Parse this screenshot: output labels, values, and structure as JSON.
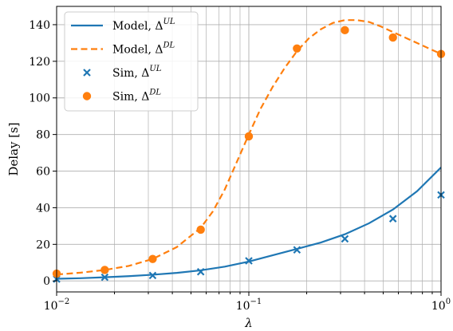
{
  "chart_data": {
    "type": "line",
    "xscale": "log",
    "xlim": [
      0.01,
      1
    ],
    "ylim": [
      -6,
      150
    ],
    "xlabel": "λ",
    "ylabel": "Delay [s]",
    "grid": true,
    "legend_position": "top-left",
    "xticks": [
      {
        "value": 0.01,
        "base": "10",
        "exp": "−2"
      },
      {
        "value": 0.1,
        "base": "10",
        "exp": "−1"
      },
      {
        "value": 1,
        "base": "10",
        "exp": "0"
      }
    ],
    "yticks": [
      0,
      20,
      40,
      60,
      80,
      100,
      120,
      140
    ],
    "series": [
      {
        "name": "Model, Δ",
        "sup": "UL",
        "kind": "line",
        "style": "solid",
        "color": "#1f77b4",
        "x": [
          0.01,
          0.0133,
          0.0178,
          0.0237,
          0.0316,
          0.0422,
          0.0562,
          0.075,
          0.1,
          0.133,
          0.178,
          0.237,
          0.316,
          0.422,
          0.562,
          0.75,
          1.0
        ],
        "y": [
          1.2,
          1.5,
          2.0,
          2.6,
          3.4,
          4.4,
          5.8,
          7.8,
          10.6,
          14.0,
          17.5,
          21.0,
          25.5,
          31.5,
          39.0,
          49.0,
          62.0
        ]
      },
      {
        "name": "Model, Δ",
        "sup": "DL",
        "kind": "line",
        "style": "dashed",
        "color": "#ff7f0e",
        "x": [
          0.01,
          0.0133,
          0.0178,
          0.0237,
          0.0316,
          0.0422,
          0.0562,
          0.065,
          0.075,
          0.0866,
          0.1,
          0.115,
          0.133,
          0.154,
          0.178,
          0.205,
          0.237,
          0.274,
          0.316,
          0.365,
          0.422,
          0.487,
          0.562,
          0.649,
          0.75,
          0.866,
          1.0
        ],
        "y": [
          3.5,
          4.5,
          6.0,
          8.2,
          12.0,
          18.5,
          29.0,
          38.0,
          50.0,
          65.0,
          80.0,
          94.0,
          106.0,
          116.5,
          125.5,
          132.5,
          137.5,
          141.0,
          142.5,
          142.5,
          141.5,
          139.0,
          136.0,
          133.0,
          130.0,
          127.0,
          124.0
        ]
      },
      {
        "name": "Sim, Δ",
        "sup": "UL",
        "kind": "scatter",
        "marker": "x",
        "color": "#1f77b4",
        "x": [
          0.01,
          0.0178,
          0.0316,
          0.0562,
          0.1,
          0.178,
          0.316,
          0.562,
          1.0
        ],
        "y": [
          1,
          2,
          3,
          5,
          11,
          17,
          23,
          34,
          47
        ]
      },
      {
        "name": "Sim, Δ",
        "sup": "DL",
        "kind": "scatter",
        "marker": "o",
        "color": "#ff7f0e",
        "x": [
          0.01,
          0.0178,
          0.0316,
          0.0562,
          0.1,
          0.178,
          0.316,
          0.562,
          1.0
        ],
        "y": [
          4,
          6,
          12,
          28,
          79,
          127,
          137,
          133,
          124
        ]
      }
    ]
  }
}
